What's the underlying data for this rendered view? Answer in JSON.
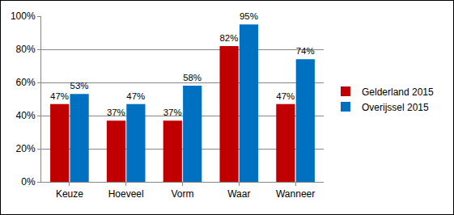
{
  "chart_data": {
    "type": "bar",
    "categories": [
      "Keuze",
      "Hoeveel",
      "Vorm",
      "Waar",
      "Wanneer"
    ],
    "series": [
      {
        "name": "Gelderland 2015",
        "color": "#c00000",
        "values": [
          47,
          37,
          37,
          82,
          47
        ],
        "value_labels": [
          "47%",
          "37%",
          "37%",
          "82%",
          "47%"
        ]
      },
      {
        "name": "Overijssel 2015",
        "color": "#0070c0",
        "values": [
          53,
          47,
          58,
          95,
          74
        ],
        "value_labels": [
          "53%",
          "47%",
          "58%",
          "95%",
          "74%"
        ]
      }
    ],
    "ylim": [
      0,
      100
    ],
    "yticks": [
      {
        "value": 0,
        "label": "0%"
      },
      {
        "value": 20,
        "label": "20%"
      },
      {
        "value": 40,
        "label": "40%"
      },
      {
        "value": 60,
        "label": "60%"
      },
      {
        "value": 80,
        "label": "80%"
      },
      {
        "value": 100,
        "label": "100%"
      }
    ],
    "grid": true,
    "legend": "right",
    "data_labels": true
  }
}
